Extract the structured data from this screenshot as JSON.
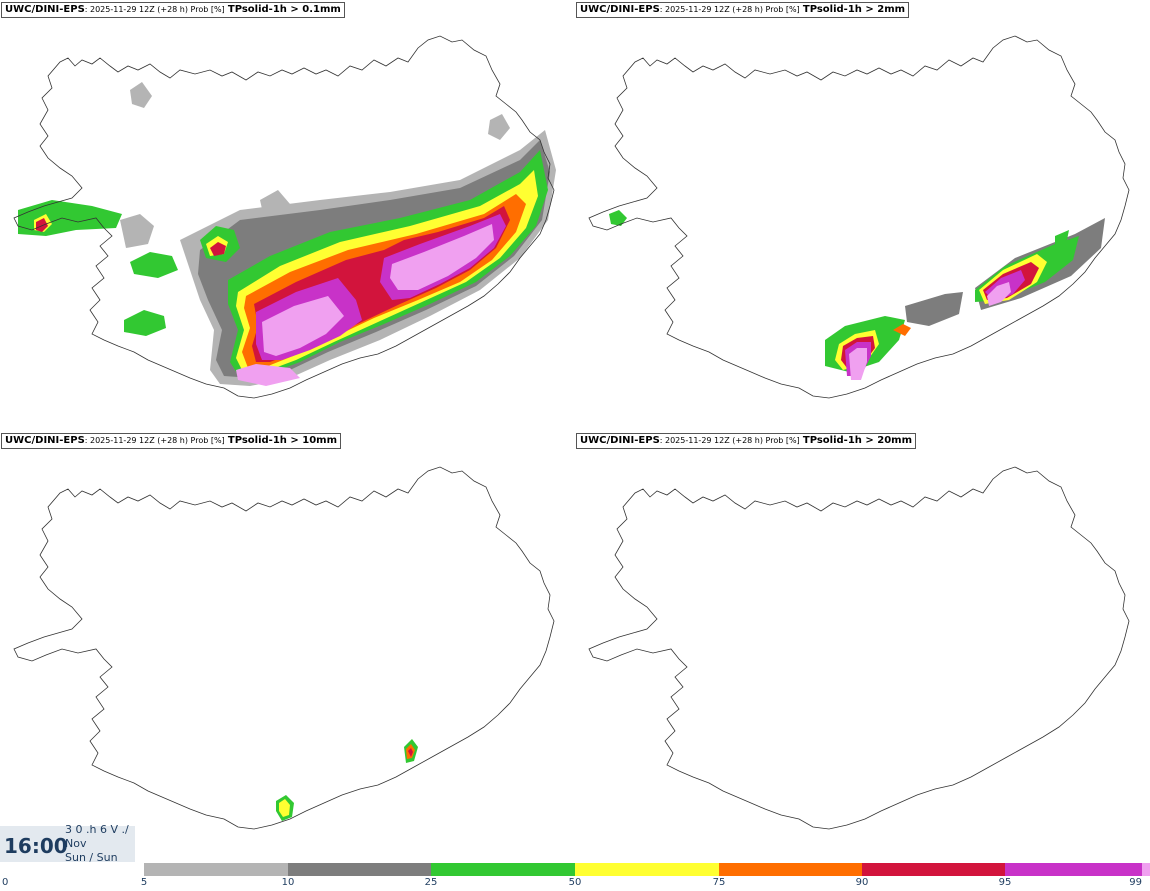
{
  "panels": [
    {
      "model": "UWC/DINI-EPS",
      "meta": ": 2025-11-29 12Z (+28 h) Prob [%]",
      "field": "TPsolid-1h > 0.1mm"
    },
    {
      "model": "UWC/DINI-EPS",
      "meta": ": 2025-11-29 12Z (+28 h) Prob [%]",
      "field": "TPsolid-1h > 2mm"
    },
    {
      "model": "UWC/DINI-EPS",
      "meta": ": 2025-11-29 12Z (+28 h) Prob [%]",
      "field": "TPsolid-1h > 10mm"
    },
    {
      "model": "UWC/DINI-EPS",
      "meta": ": 2025-11-29 12Z (+28 h) Prob [%]",
      "field": "TPsolid-1h > 20mm"
    }
  ],
  "clock": {
    "time": "16:00",
    "line1": "3 0 .h 6 V ./",
    "line2": "Nov",
    "line3": "Sun / Sun"
  },
  "legend": {
    "ticks": [
      "0",
      "5",
      "10",
      "25",
      "50",
      "75",
      "90",
      "95",
      "99"
    ],
    "colors": [
      "#b4b4b4",
      "#7d7d7d",
      "#32c832",
      "#ffff32",
      "#ff6e00",
      "#d2143c",
      "#c832c8",
      "#f0a0f0"
    ]
  }
}
